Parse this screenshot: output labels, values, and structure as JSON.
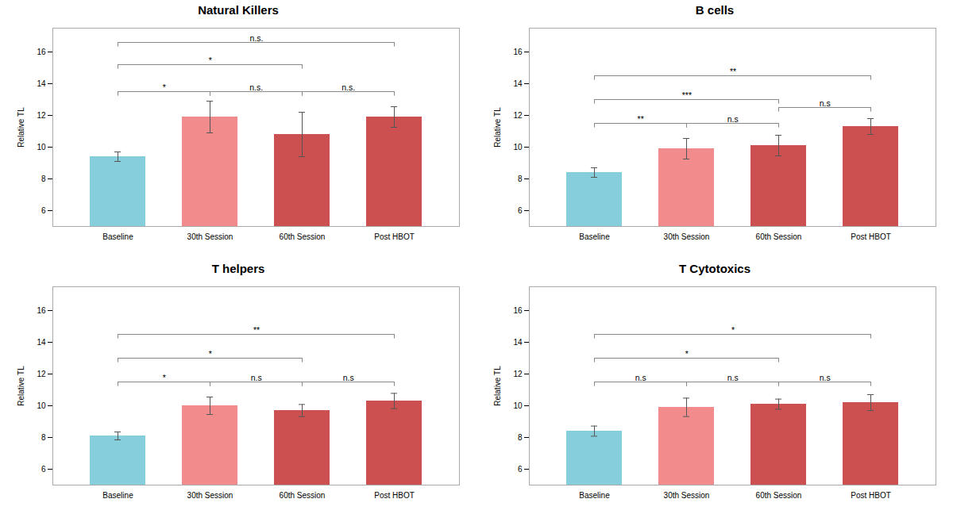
{
  "chart_data": [
    {
      "type": "bar",
      "title": "Natural Killers",
      "categories": [
        "Baseline",
        "30th Session",
        "60th Session",
        "Post HBOT"
      ],
      "values": [
        9.4,
        11.9,
        10.8,
        11.9
      ],
      "errors": [
        0.3,
        1.0,
        1.4,
        0.65
      ],
      "colors": [
        "#87CEDC",
        "#F28C8C",
        "#CD5050",
        "#CD5050"
      ],
      "ylim": [
        5,
        17.5
      ],
      "yticks": [
        6,
        8,
        10,
        12,
        14,
        16
      ],
      "ylabel": "Relative TL",
      "brackets": [
        {
          "from": "Baseline",
          "to": "30th Session",
          "y": 13.5,
          "label": "*"
        },
        {
          "from": "30th Session",
          "to": "60th Session",
          "y": 13.5,
          "label": "n.s."
        },
        {
          "from": "60th Session",
          "to": "Post HBOT",
          "y": 13.5,
          "label": "n.s."
        },
        {
          "from": "Baseline",
          "to": "60th Session",
          "y": 15.2,
          "label": "*"
        },
        {
          "from": "Baseline",
          "to": "Post HBOT",
          "y": 16.6,
          "label": "n.s."
        }
      ]
    },
    {
      "type": "bar",
      "title": "B cells",
      "categories": [
        "Baseline",
        "30th Session",
        "60th Session",
        "Post HBOT"
      ],
      "values": [
        8.4,
        9.9,
        10.1,
        11.3
      ],
      "errors": [
        0.3,
        0.65,
        0.65,
        0.5
      ],
      "colors": [
        "#87CEDC",
        "#F28C8C",
        "#CD5050",
        "#CD5050"
      ],
      "ylim": [
        5,
        17.5
      ],
      "yticks": [
        6,
        8,
        10,
        12,
        14,
        16
      ],
      "ylabel": "Relative TL",
      "brackets": [
        {
          "from": "Baseline",
          "to": "30th Session",
          "y": 11.5,
          "label": "**"
        },
        {
          "from": "30th Session",
          "to": "60th Session",
          "y": 11.5,
          "label": "n.s"
        },
        {
          "from": "60th Session",
          "to": "Post HBOT",
          "y": 12.5,
          "label": "n.s"
        },
        {
          "from": "Baseline",
          "to": "60th Session",
          "y": 13.0,
          "label": "***"
        },
        {
          "from": "Baseline",
          "to": "Post HBOT",
          "y": 14.5,
          "label": "**"
        }
      ]
    },
    {
      "type": "bar",
      "title": "T helpers",
      "categories": [
        "Baseline",
        "30th Session",
        "60th Session",
        "Post HBOT"
      ],
      "values": [
        8.1,
        10.0,
        9.7,
        10.3
      ],
      "errors": [
        0.25,
        0.55,
        0.38,
        0.48
      ],
      "colors": [
        "#87CEDC",
        "#F28C8C",
        "#CD5050",
        "#CD5050"
      ],
      "ylim": [
        5,
        17.5
      ],
      "yticks": [
        6,
        8,
        10,
        12,
        14,
        16
      ],
      "ylabel": "Relative TL",
      "brackets": [
        {
          "from": "Baseline",
          "to": "30th Session",
          "y": 11.5,
          "label": "*"
        },
        {
          "from": "30th Session",
          "to": "60th Session",
          "y": 11.5,
          "label": "n.s"
        },
        {
          "from": "60th Session",
          "to": "Post HBOT",
          "y": 11.5,
          "label": "n.s"
        },
        {
          "from": "Baseline",
          "to": "60th Session",
          "y": 13.0,
          "label": "*"
        },
        {
          "from": "Baseline",
          "to": "Post HBOT",
          "y": 14.5,
          "label": "**"
        }
      ]
    },
    {
      "type": "bar",
      "title": "T Cytotoxics",
      "categories": [
        "Baseline",
        "30th Session",
        "60th Session",
        "Post HBOT"
      ],
      "values": [
        8.4,
        9.9,
        10.1,
        10.2
      ],
      "errors": [
        0.32,
        0.58,
        0.32,
        0.5
      ],
      "colors": [
        "#87CEDC",
        "#F28C8C",
        "#CD5050",
        "#CD5050"
      ],
      "ylim": [
        5,
        17.5
      ],
      "yticks": [
        6,
        8,
        10,
        12,
        14,
        16
      ],
      "ylabel": "Relative TL",
      "brackets": [
        {
          "from": "Baseline",
          "to": "30th Session",
          "y": 11.5,
          "label": "n.s"
        },
        {
          "from": "30th Session",
          "to": "60th Session",
          "y": 11.5,
          "label": "n.s"
        },
        {
          "from": "60th Session",
          "to": "Post HBOT",
          "y": 11.5,
          "label": "n.s"
        },
        {
          "from": "Baseline",
          "to": "60th Session",
          "y": 13.0,
          "label": "*"
        },
        {
          "from": "Baseline",
          "to": "Post HBOT",
          "y": 14.5,
          "label": "*"
        }
      ]
    }
  ]
}
